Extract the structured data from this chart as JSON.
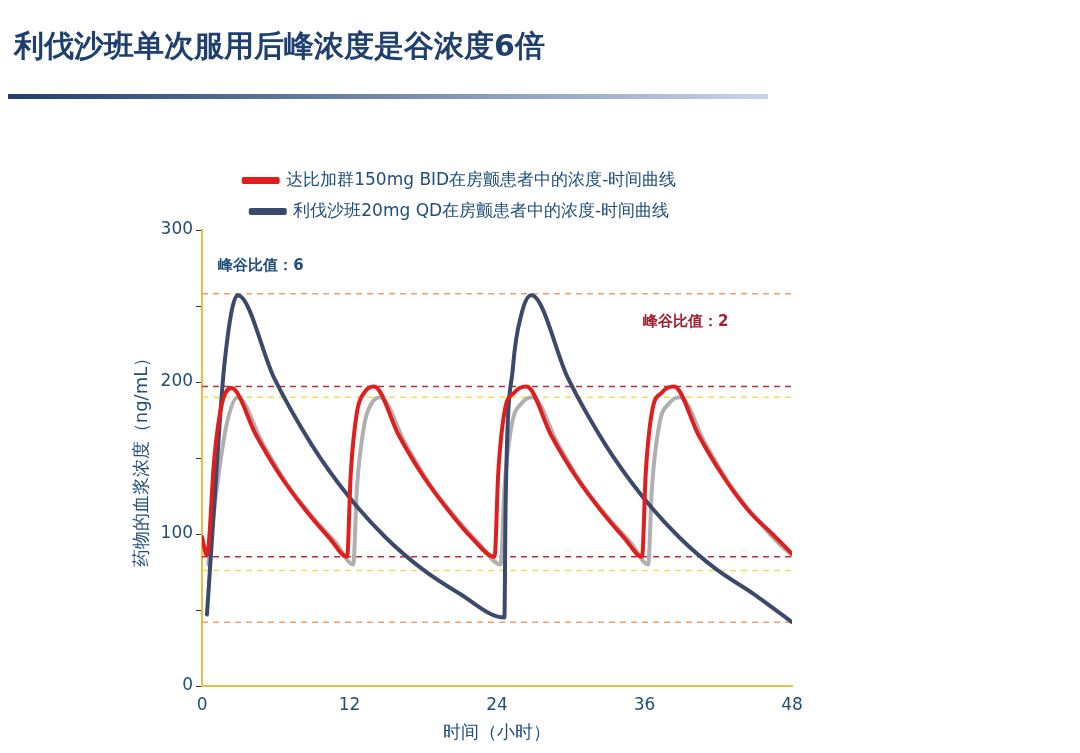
{
  "chart_data": {
    "type": "line",
    "title": "利伐沙班单次服用后峰浓度是谷浓度6倍",
    "xlabel": "时间（小时）",
    "ylabel": "药物的血浆浓度（ng/mL）",
    "legend": "top",
    "grid": false,
    "marker": "none",
    "line_style": "solid",
    "xlim": [
      0,
      48
    ],
    "xticks": [
      0,
      12,
      24,
      36,
      48
    ],
    "ylim": [
      0,
      300
    ],
    "yticks": [
      0,
      {
        "value": 50,
        "label": null
      },
      100,
      {
        "value": 150,
        "label": null
      },
      200,
      {
        "value": 250,
        "label": null
      },
      300
    ],
    "series": [
      {
        "name": "达比加群150mg BID在房颤患者中的浓度-时间曲线",
        "color": "#e01e1e",
        "x": [
          0,
          0.4,
          1,
          1.6,
          2.4,
          4.4,
          6.4,
          8.4,
          10.4,
          11.8,
          12.1,
          12.6,
          13.2,
          14,
          16,
          18,
          20,
          22,
          23.8,
          24.1,
          24.6,
          25.4,
          26.4,
          28.4,
          30.4,
          32.4,
          34.4,
          35.8,
          36.1,
          36.6,
          37.4,
          38.4,
          40.4,
          42.4,
          44.4,
          46.4,
          48
        ],
        "values": [
          98,
          86,
          150,
          185,
          196,
          165,
          138,
          116,
          97,
          85,
          140,
          180,
          193,
          197,
          165,
          138,
          116,
          97,
          85,
          140,
          180,
          193,
          197,
          165,
          138,
          116,
          97,
          85,
          140,
          180,
          193,
          197,
          165,
          138,
          116,
          100,
          87
        ]
      },
      {
        "name": "利伐沙班20mg QD在房颤患者中的浓度-时间曲线",
        "color": "#3b4a6b",
        "x": [
          0.4,
          1,
          1.8,
          2.9,
          5.9,
          8.9,
          11.9,
          14.9,
          17.9,
          20.9,
          24.6,
          24.7,
          25.3,
          26,
          26.8,
          29.8,
          32.8,
          35.8,
          38.8,
          41.8,
          44.8,
          48
        ],
        "values": [
          47,
          120,
          210,
          257,
          202,
          159,
          125,
          98,
          77,
          61,
          45,
          120,
          210,
          245,
          257,
          202,
          159,
          125,
          98,
          77,
          61,
          42
        ]
      },
      {
        "color": "#b0b0b0",
        "x": [
          0.5,
          1.2,
          2,
          2.9,
          4.9,
          6.9,
          8.9,
          10.9,
          12.3,
          12.6,
          13.2,
          13.8,
          14.5,
          16.5,
          18.5,
          20.5,
          22.5,
          24.3,
          24.6,
          25.2,
          26,
          26.9,
          28.9,
          30.9,
          32.9,
          34.9,
          36.3,
          36.6,
          37.2,
          38,
          38.9,
          40.9,
          42.9,
          44.9,
          46.9,
          48
        ],
        "values": [
          80,
          130,
          172,
          190,
          160,
          133,
          112,
          94,
          80,
          130,
          172,
          186,
          190,
          160,
          133,
          112,
          94,
          80,
          130,
          172,
          186,
          190,
          160,
          133,
          112,
          94,
          80,
          130,
          172,
          186,
          190,
          160,
          133,
          112,
          94,
          86
        ]
      }
    ],
    "ref_lines": [
      {
        "axis": "y",
        "value": 258,
        "color": "#f0a060",
        "line_style": "dashed"
      },
      {
        "axis": "y",
        "value": 42,
        "color": "#f0a060",
        "line_style": "dashed"
      },
      {
        "axis": "y",
        "value": 197,
        "color": "#b03040",
        "line_style": "dashed"
      },
      {
        "axis": "y",
        "value": 85,
        "color": "#b03040",
        "line_style": "dashed"
      },
      {
        "axis": "y",
        "value": 190,
        "color": "#e8e060",
        "line_style": "dashed"
      },
      {
        "axis": "y",
        "value": 76,
        "color": "#e8e060",
        "line_style": "dashed"
      }
    ],
    "annotations": [
      "峰谷比值：6",
      "峰谷比值：2"
    ]
  }
}
